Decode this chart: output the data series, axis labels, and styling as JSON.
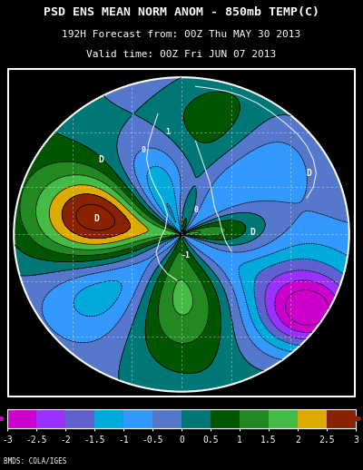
{
  "title_line1": "PSD ENS MEAN NORM ANOM - 850mb TEMP(C)",
  "title_line2": "192H Forecast from: 00Z Thu MAY 30 2013",
  "title_line3": "Valid time: 00Z Fri JUN 07 2013",
  "credit": "BMDS: COLA/IGES",
  "colorbar_tick_labels": [
    "-3",
    "-2.5",
    "-2",
    "-1.5",
    "-1",
    "-0.5",
    "0",
    "0.5",
    "1",
    "1.5",
    "2",
    "2.5",
    "3"
  ],
  "colorbar_colors": [
    "#CC00CC",
    "#9B30FF",
    "#6060D0",
    "#00AADD",
    "#3399FF",
    "#5577CC",
    "#007777",
    "#005500",
    "#228822",
    "#44BB44",
    "#DDAA00",
    "#CC6600",
    "#882200"
  ],
  "bg_color": "#000000",
  "fig_width": 4.0,
  "fig_height": 5.18,
  "dpi": 100
}
